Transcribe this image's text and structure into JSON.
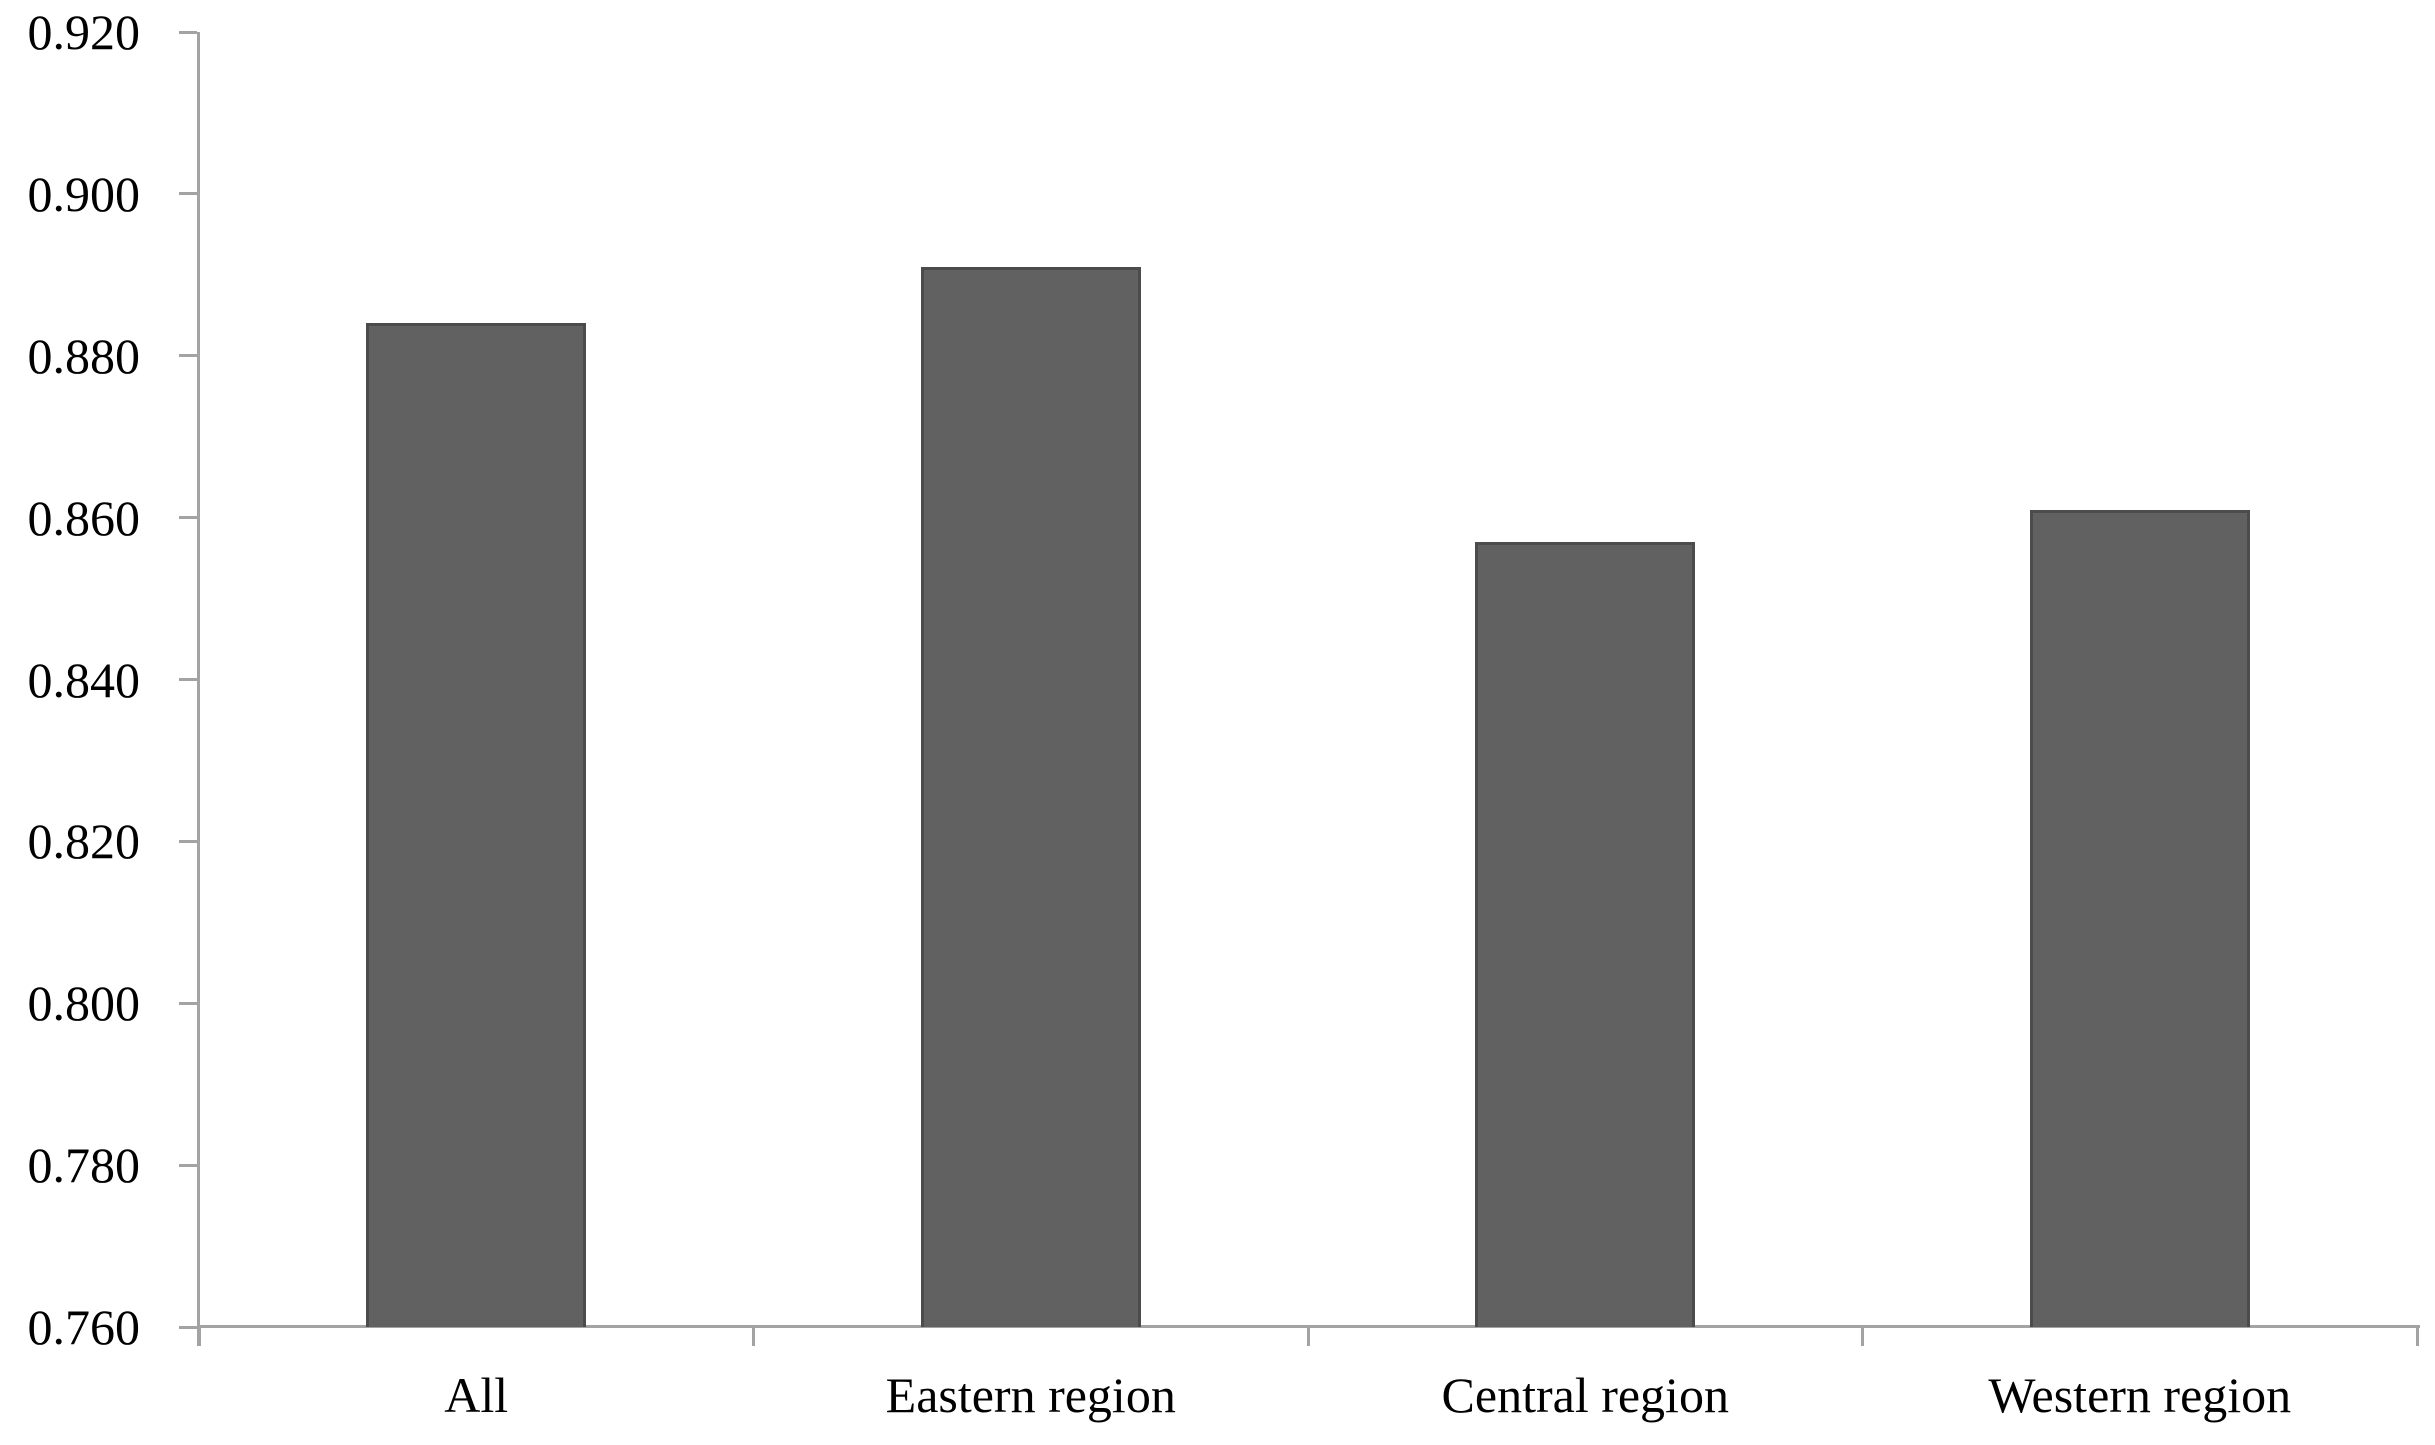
{
  "chart_data": {
    "type": "bar",
    "title": "",
    "xlabel": "",
    "ylabel": "",
    "categories": [
      "All",
      "Eastern region",
      "Central region",
      "Western region"
    ],
    "values": [
      0.884,
      0.891,
      0.857,
      0.861
    ],
    "ylim": [
      0.76,
      0.92
    ],
    "ytick_interval": 0.02,
    "ytick_labels": [
      "0.920",
      "0.900",
      "0.880",
      "0.860",
      "0.840",
      "0.820",
      "0.800",
      "0.780",
      "0.760"
    ],
    "grid": false,
    "legend_position": "none",
    "colors": {
      "bar_fill": "#616161",
      "bar_border": "#4c4c4c",
      "axis": "#a3a3a3",
      "label_text": "#000000",
      "background": "#ffffff"
    }
  }
}
